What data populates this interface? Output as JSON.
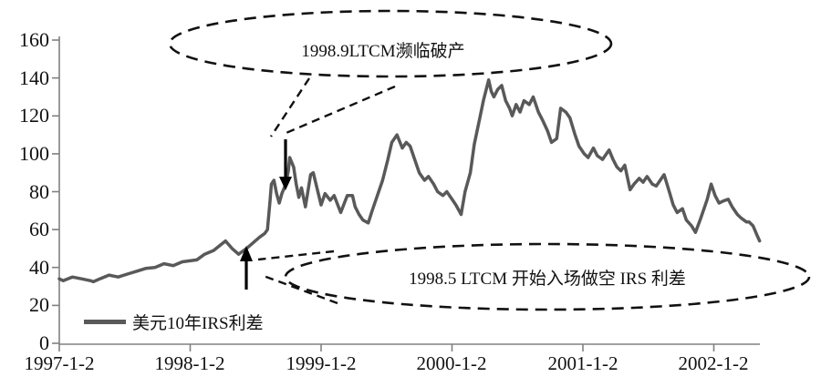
{
  "legend": {
    "label": "美元10年IRS利差"
  },
  "colors": {
    "line": "#595959",
    "axis": "#808080",
    "annotation_stroke": "#111111"
  },
  "chart_data": {
    "type": "line",
    "title": "",
    "xlabel": "",
    "ylabel": "",
    "ylim": [
      0,
      160
    ],
    "xlim_years": [
      1997.0,
      2002.45
    ],
    "grid": false,
    "legend_position": "bottom-left",
    "yticks": [
      "0",
      "20",
      "40",
      "60",
      "80",
      "100",
      "120",
      "140",
      "160"
    ],
    "xticks": [
      "1997-1-2",
      "1998-1-2",
      "1999-1-2",
      "2000-1-2",
      "2001-1-2",
      "2002-1-2"
    ],
    "xtick_years": [
      1997,
      1998,
      1999,
      2000,
      2001,
      2002
    ],
    "series": [
      {
        "name": "美元10年IRS利差",
        "color": "#595959",
        "points": [
          [
            1997.0,
            34
          ],
          [
            1997.03,
            33
          ],
          [
            1997.1,
            35
          ],
          [
            1997.17,
            34
          ],
          [
            1997.24,
            33
          ],
          [
            1997.26,
            32.5
          ],
          [
            1997.31,
            34
          ],
          [
            1997.38,
            36
          ],
          [
            1997.45,
            35
          ],
          [
            1997.52,
            36.5
          ],
          [
            1997.59,
            38
          ],
          [
            1997.66,
            39.5
          ],
          [
            1997.73,
            40
          ],
          [
            1997.8,
            42
          ],
          [
            1997.87,
            41
          ],
          [
            1997.94,
            43
          ],
          [
            1998.05,
            44
          ],
          [
            1998.11,
            47
          ],
          [
            1998.18,
            49
          ],
          [
            1998.27,
            54
          ],
          [
            1998.32,
            50
          ],
          [
            1998.37,
            47
          ],
          [
            1998.43,
            50
          ],
          [
            1998.48,
            53
          ],
          [
            1998.53,
            56
          ],
          [
            1998.57,
            58
          ],
          [
            1998.59,
            60
          ],
          [
            1998.61,
            75
          ],
          [
            1998.62,
            84
          ],
          [
            1998.64,
            86
          ],
          [
            1998.66,
            79
          ],
          [
            1998.68,
            74
          ],
          [
            1998.7,
            79
          ],
          [
            1998.73,
            84
          ],
          [
            1998.75,
            91
          ],
          [
            1998.76,
            98
          ],
          [
            1998.79,
            93
          ],
          [
            1998.81,
            84
          ],
          [
            1998.83,
            77
          ],
          [
            1998.85,
            82
          ],
          [
            1998.88,
            72
          ],
          [
            1998.92,
            89
          ],
          [
            1998.94,
            90
          ],
          [
            1999.0,
            73
          ],
          [
            1999.03,
            79
          ],
          [
            1999.07,
            75.5
          ],
          [
            1999.1,
            78
          ],
          [
            1999.15,
            69
          ],
          [
            1999.2,
            78
          ],
          [
            1999.24,
            78
          ],
          [
            1999.26,
            72
          ],
          [
            1999.29,
            68
          ],
          [
            1999.32,
            65
          ],
          [
            1999.36,
            63.5
          ],
          [
            1999.39,
            70
          ],
          [
            1999.43,
            78
          ],
          [
            1999.47,
            86
          ],
          [
            1999.51,
            97
          ],
          [
            1999.54,
            106
          ],
          [
            1999.58,
            110
          ],
          [
            1999.62,
            103
          ],
          [
            1999.65,
            106
          ],
          [
            1999.68,
            104
          ],
          [
            1999.72,
            96
          ],
          [
            1999.75,
            90
          ],
          [
            1999.79,
            86
          ],
          [
            1999.82,
            88
          ],
          [
            1999.86,
            84
          ],
          [
            1999.89,
            80
          ],
          [
            1999.93,
            78
          ],
          [
            1999.96,
            80
          ],
          [
            2000.0,
            76
          ],
          [
            2000.03,
            73
          ],
          [
            2000.07,
            68
          ],
          [
            2000.1,
            80
          ],
          [
            2000.14,
            90
          ],
          [
            2000.17,
            105
          ],
          [
            2000.21,
            118
          ],
          [
            2000.24,
            128
          ],
          [
            2000.28,
            139
          ],
          [
            2000.3,
            133
          ],
          [
            2000.32,
            130
          ],
          [
            2000.35,
            134
          ],
          [
            2000.38,
            136
          ],
          [
            2000.41,
            128
          ],
          [
            2000.44,
            124
          ],
          [
            2000.46,
            120
          ],
          [
            2000.49,
            126
          ],
          [
            2000.52,
            122
          ],
          [
            2000.55,
            128
          ],
          [
            2000.59,
            126
          ],
          [
            2000.62,
            130
          ],
          [
            2000.66,
            122
          ],
          [
            2000.69,
            118
          ],
          [
            2000.73,
            112
          ],
          [
            2000.76,
            106
          ],
          [
            2000.8,
            108
          ],
          [
            2000.83,
            124
          ],
          [
            2000.87,
            122
          ],
          [
            2000.9,
            119
          ],
          [
            2000.94,
            110
          ],
          [
            2000.97,
            104
          ],
          [
            2001.01,
            100
          ],
          [
            2001.04,
            98
          ],
          [
            2001.08,
            103
          ],
          [
            2001.11,
            99
          ],
          [
            2001.15,
            97
          ],
          [
            2001.18,
            100
          ],
          [
            2001.2,
            102
          ],
          [
            2001.23,
            97
          ],
          [
            2001.26,
            93
          ],
          [
            2001.29,
            91
          ],
          [
            2001.32,
            94
          ],
          [
            2001.36,
            81
          ],
          [
            2001.39,
            84
          ],
          [
            2001.43,
            87
          ],
          [
            2001.46,
            85
          ],
          [
            2001.49,
            88
          ],
          [
            2001.53,
            84
          ],
          [
            2001.56,
            83
          ],
          [
            2001.59,
            86
          ],
          [
            2001.62,
            89
          ],
          [
            2001.66,
            80
          ],
          [
            2001.69,
            73
          ],
          [
            2001.72,
            69
          ],
          [
            2001.76,
            71
          ],
          [
            2001.79,
            65
          ],
          [
            2001.83,
            62
          ],
          [
            2001.86,
            58.5
          ],
          [
            2001.9,
            66
          ],
          [
            2001.93,
            72
          ],
          [
            2001.95,
            76
          ],
          [
            2001.98,
            84
          ],
          [
            2002.01,
            78
          ],
          [
            2002.04,
            74
          ],
          [
            2002.07,
            75
          ],
          [
            2002.11,
            76
          ],
          [
            2002.14,
            72
          ],
          [
            2002.18,
            68
          ],
          [
            2002.21,
            66
          ],
          [
            2002.25,
            64
          ],
          [
            2002.27,
            64
          ],
          [
            2002.3,
            62
          ],
          [
            2002.33,
            57
          ],
          [
            2002.35,
            54
          ]
        ]
      }
    ],
    "annotations": [
      {
        "text": "1998.9LTCM濒临破产",
        "style": "dashed-ellipse-callout",
        "arrow": "down",
        "target_year": 1998.73,
        "target_value": 84
      },
      {
        "text": "1998.5 LTCM 开始入场做空 IRS 利差",
        "style": "dashed-ellipse-callout",
        "arrow": "up",
        "target_year": 1998.43,
        "target_value": 50
      }
    ]
  }
}
